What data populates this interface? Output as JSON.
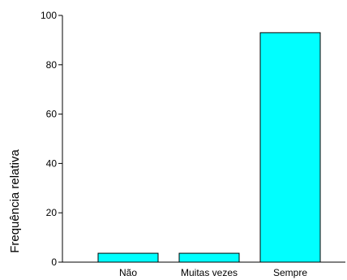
{
  "chart_data": {
    "type": "bar",
    "title": "",
    "xlabel": "",
    "ylabel": "Frequência relativa",
    "categories": [
      "Não",
      "Muitas vezes",
      "Sempre"
    ],
    "values": [
      3.6,
      3.6,
      93
    ],
    "ylim": [
      0,
      100
    ],
    "yticks": [
      0,
      20,
      40,
      60,
      80,
      100
    ],
    "grid": false,
    "legend": "none",
    "bar_color": "#00ffff",
    "bar_edge_color": "#000000"
  }
}
